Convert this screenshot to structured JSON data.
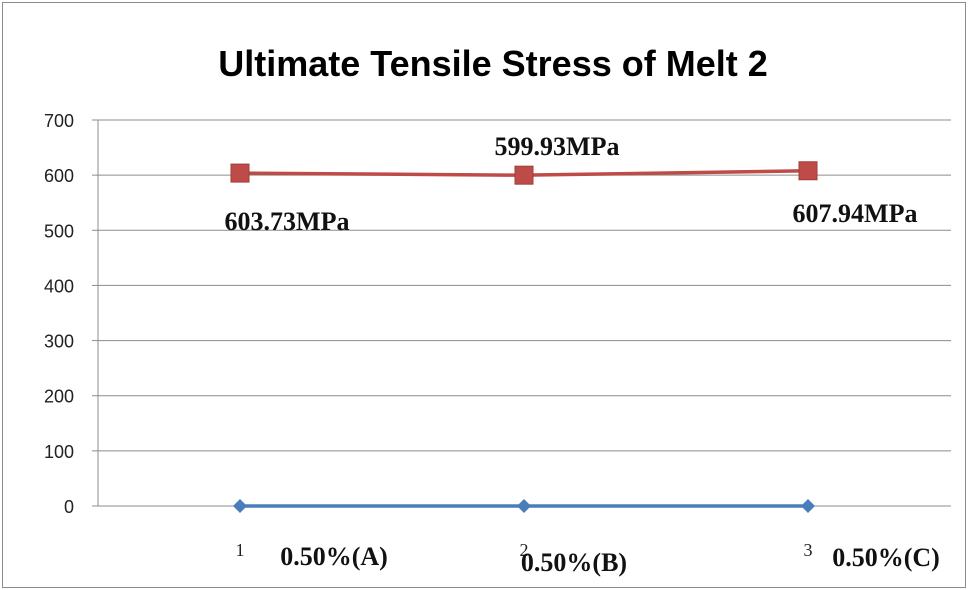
{
  "chart_data": {
    "type": "line",
    "title": "Ultimate Tensile Stress of  Melt 2",
    "xlabel": "",
    "ylabel": "",
    "ylim": [
      0,
      700
    ],
    "yticks": [
      0,
      100,
      200,
      300,
      400,
      500,
      600,
      700
    ],
    "x": [
      1,
      2,
      3
    ],
    "x_tick_labels": [
      "1",
      "2",
      "3"
    ],
    "category_labels": [
      "0.50%(A)",
      "0.50%(B)",
      "0.50%(C)"
    ],
    "grid": "horizontal",
    "legend": "none",
    "series": [
      {
        "values": [
          0,
          0,
          0
        ],
        "color": "#4A7EBB",
        "marker": "diamond"
      },
      {
        "values": [
          603.73,
          599.93,
          607.94
        ],
        "color": "#BE4B48",
        "marker": "square",
        "data_labels": [
          "603.73MPa",
          "599.93MPa",
          "607.94MPa"
        ]
      }
    ]
  }
}
